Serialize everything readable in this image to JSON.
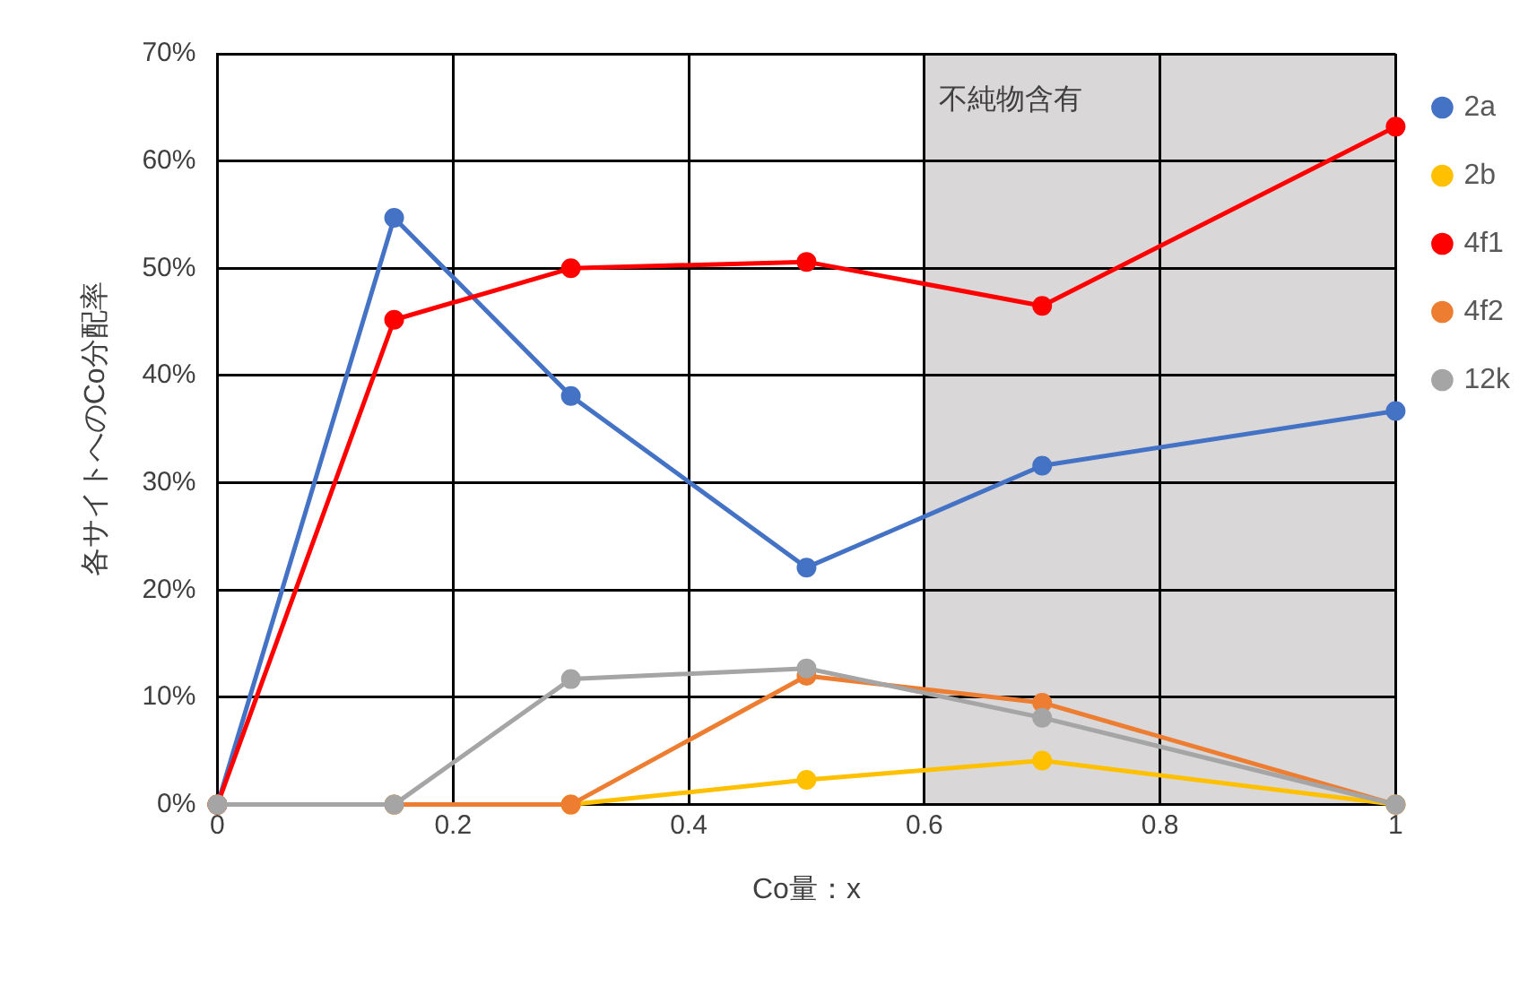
{
  "chart_data": {
    "type": "line",
    "xlabel": "Co量：x",
    "ylabel": "各サイトへのCo分配率",
    "x": [
      0,
      0.15,
      0.3,
      0.5,
      0.7,
      1
    ],
    "series": [
      {
        "name": "2a",
        "color": "#4472c4",
        "values": [
          0,
          54.7,
          38.1,
          22.1,
          31.6,
          36.7
        ]
      },
      {
        "name": "2b",
        "color": "#ffc000",
        "values": [
          0,
          0,
          0,
          2.3,
          4.1,
          0
        ]
      },
      {
        "name": "4f1",
        "color": "#ff0000",
        "values": [
          0,
          45.2,
          50,
          50.6,
          46.5,
          63.2
        ]
      },
      {
        "name": "4f2",
        "color": "#ed7d31",
        "values": [
          0,
          0,
          0,
          12,
          9.5,
          0
        ]
      },
      {
        "name": "12k",
        "color": "#a5a5a5",
        "values": [
          0,
          0,
          11.7,
          12.7,
          8.1,
          0
        ]
      }
    ],
    "xlim": [
      0,
      1
    ],
    "xticks": [
      0,
      0.2,
      0.4,
      0.6,
      0.8,
      1
    ],
    "ylim": [
      0,
      70
    ],
    "yticks": [
      {
        "value": 0,
        "label": "0%"
      },
      {
        "value": 10,
        "label": "10%"
      },
      {
        "value": 20,
        "label": "20%"
      },
      {
        "value": 30,
        "label": "30%"
      },
      {
        "value": 40,
        "label": "40%"
      },
      {
        "value": 50,
        "label": "50%"
      },
      {
        "value": 60,
        "label": "60%"
      },
      {
        "value": 70,
        "label": "70%"
      }
    ],
    "bands": [
      {
        "axis": "x",
        "from": 0.6,
        "to": 1,
        "label": "不純物含有",
        "color": "#d9d7d8"
      }
    ],
    "grid": true,
    "legend": "top right",
    "marker": "circle",
    "line_style": "solid"
  }
}
